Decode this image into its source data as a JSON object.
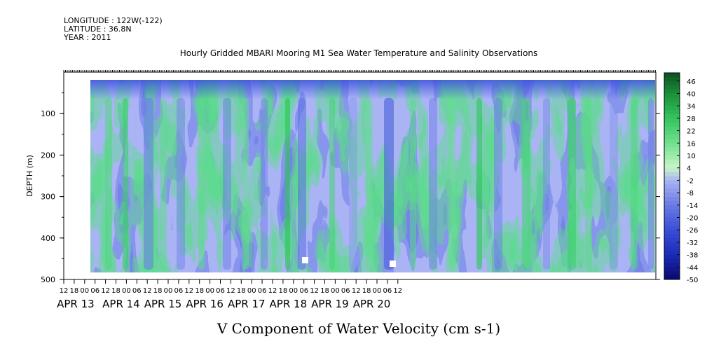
{
  "header": {
    "longitude": "LONGITUDE : 122W(-122)",
    "latitude": "LATITUDE : 36.8N",
    "year": "YEAR : 2011"
  },
  "chart_data": {
    "type": "heatmap",
    "title": "Hourly Gridded MBARI Mooring M1 Sea Water Temperature and Salinity Observations",
    "xlabel": "V Component of Water Velocity (cm s-1)",
    "ylabel": "DEPTH (m)",
    "ylim": [
      500,
      0
    ],
    "y_ticks": [
      100,
      200,
      300,
      400,
      500
    ],
    "x_hour_ticks": [
      "12",
      "18",
      "00",
      "06",
      "12",
      "18",
      "00",
      "06",
      "12",
      "18",
      "00",
      "06",
      "12",
      "18",
      "00",
      "06",
      "12",
      "18",
      "00",
      "06",
      "12",
      "18",
      "00",
      "06",
      "12",
      "18",
      "00",
      "06",
      "12",
      "18",
      "00",
      "06",
      "12"
    ],
    "x_date_labels": [
      "APR 13",
      "APR 14",
      "APR 15",
      "APR 16",
      "APR 17",
      "APR 18",
      "APR 19",
      "APR 20"
    ],
    "colorbar": {
      "labels": [
        "46",
        "40",
        "34",
        "28",
        "22",
        "16",
        "10",
        "4",
        "-2",
        "-8",
        "-14",
        "-20",
        "-26",
        "-32",
        "-38",
        "-44",
        "-50"
      ],
      "range": [
        -50,
        50
      ]
    },
    "data_depth_range_m": [
      20,
      485
    ],
    "data_time_range": [
      "APR 13 18",
      "APR 20 12"
    ],
    "colors": {
      "strong_negative": "#2a3fd1",
      "negative": "#6f7fe6",
      "weak_negative": "#a9b3f5",
      "near_zero": "#b9f0b9",
      "positive": "#5fe08a",
      "strong_positive": "#1fb049"
    }
  }
}
